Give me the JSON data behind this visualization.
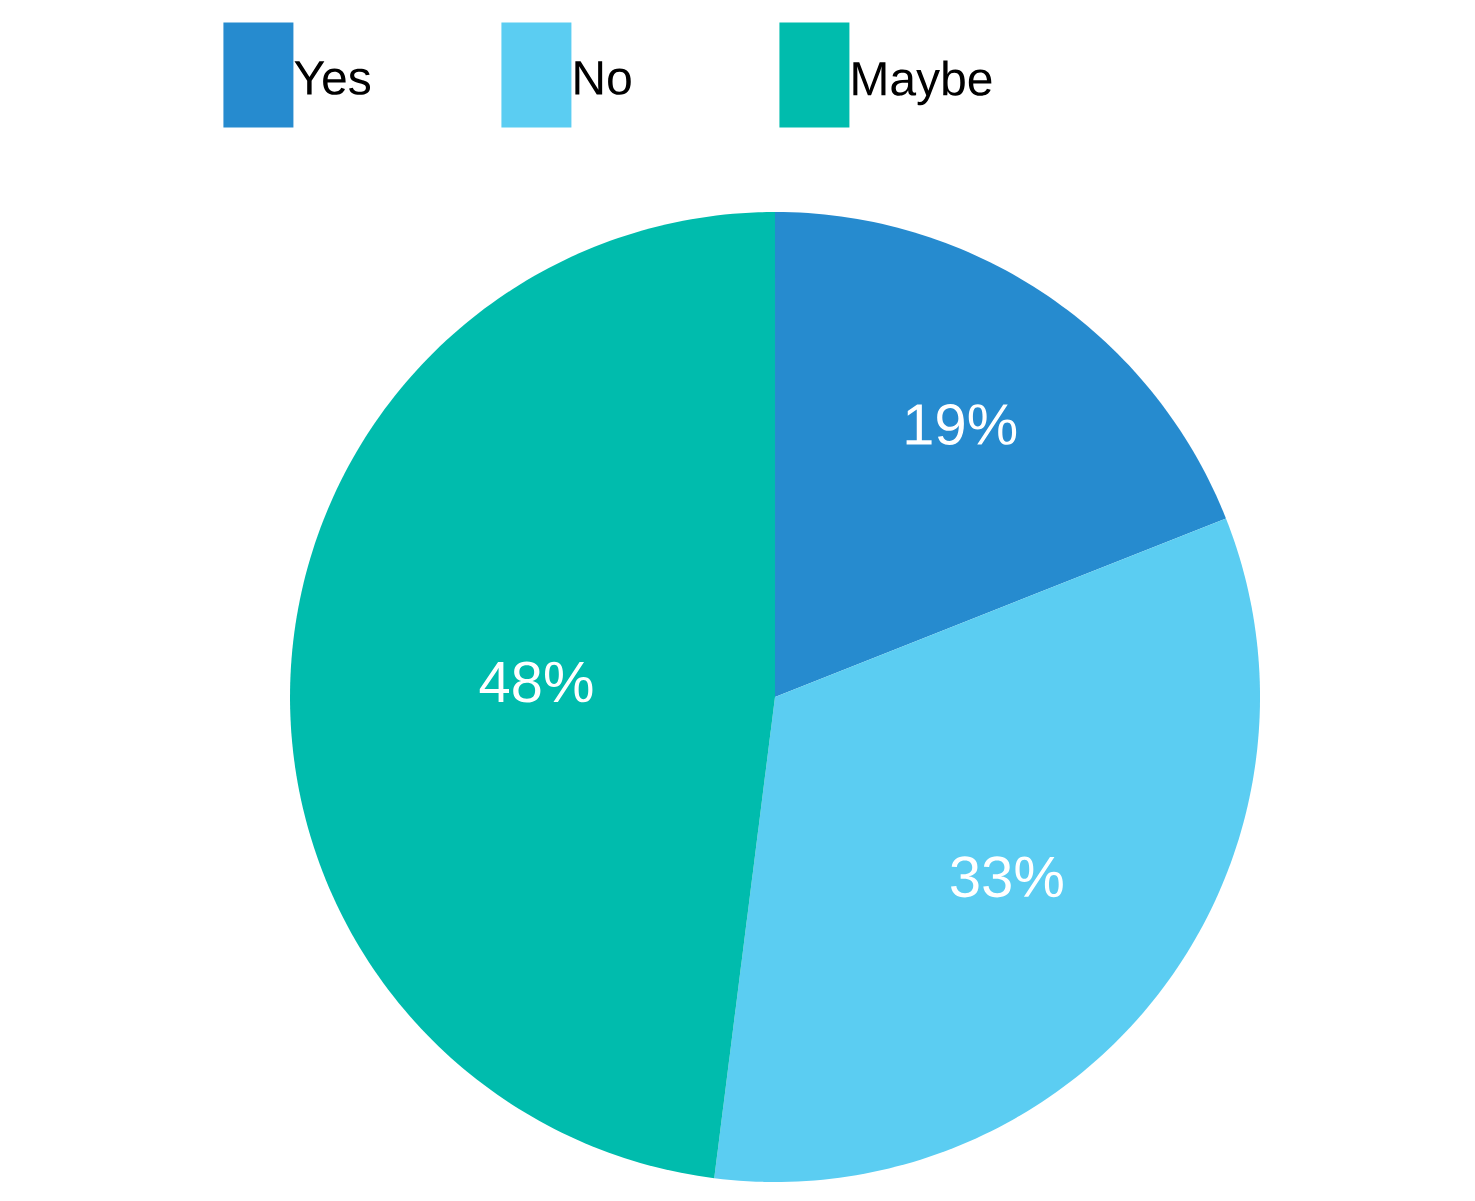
{
  "chart_data": {
    "type": "pie",
    "categories": [
      "Yes",
      "No",
      "Maybe"
    ],
    "values": [
      19,
      33,
      48
    ],
    "colors": [
      "#268bcf",
      "#5bcdf2",
      "#00bcad"
    ],
    "value_labels": [
      "19%",
      "33%",
      "48%"
    ],
    "legend": "top"
  }
}
